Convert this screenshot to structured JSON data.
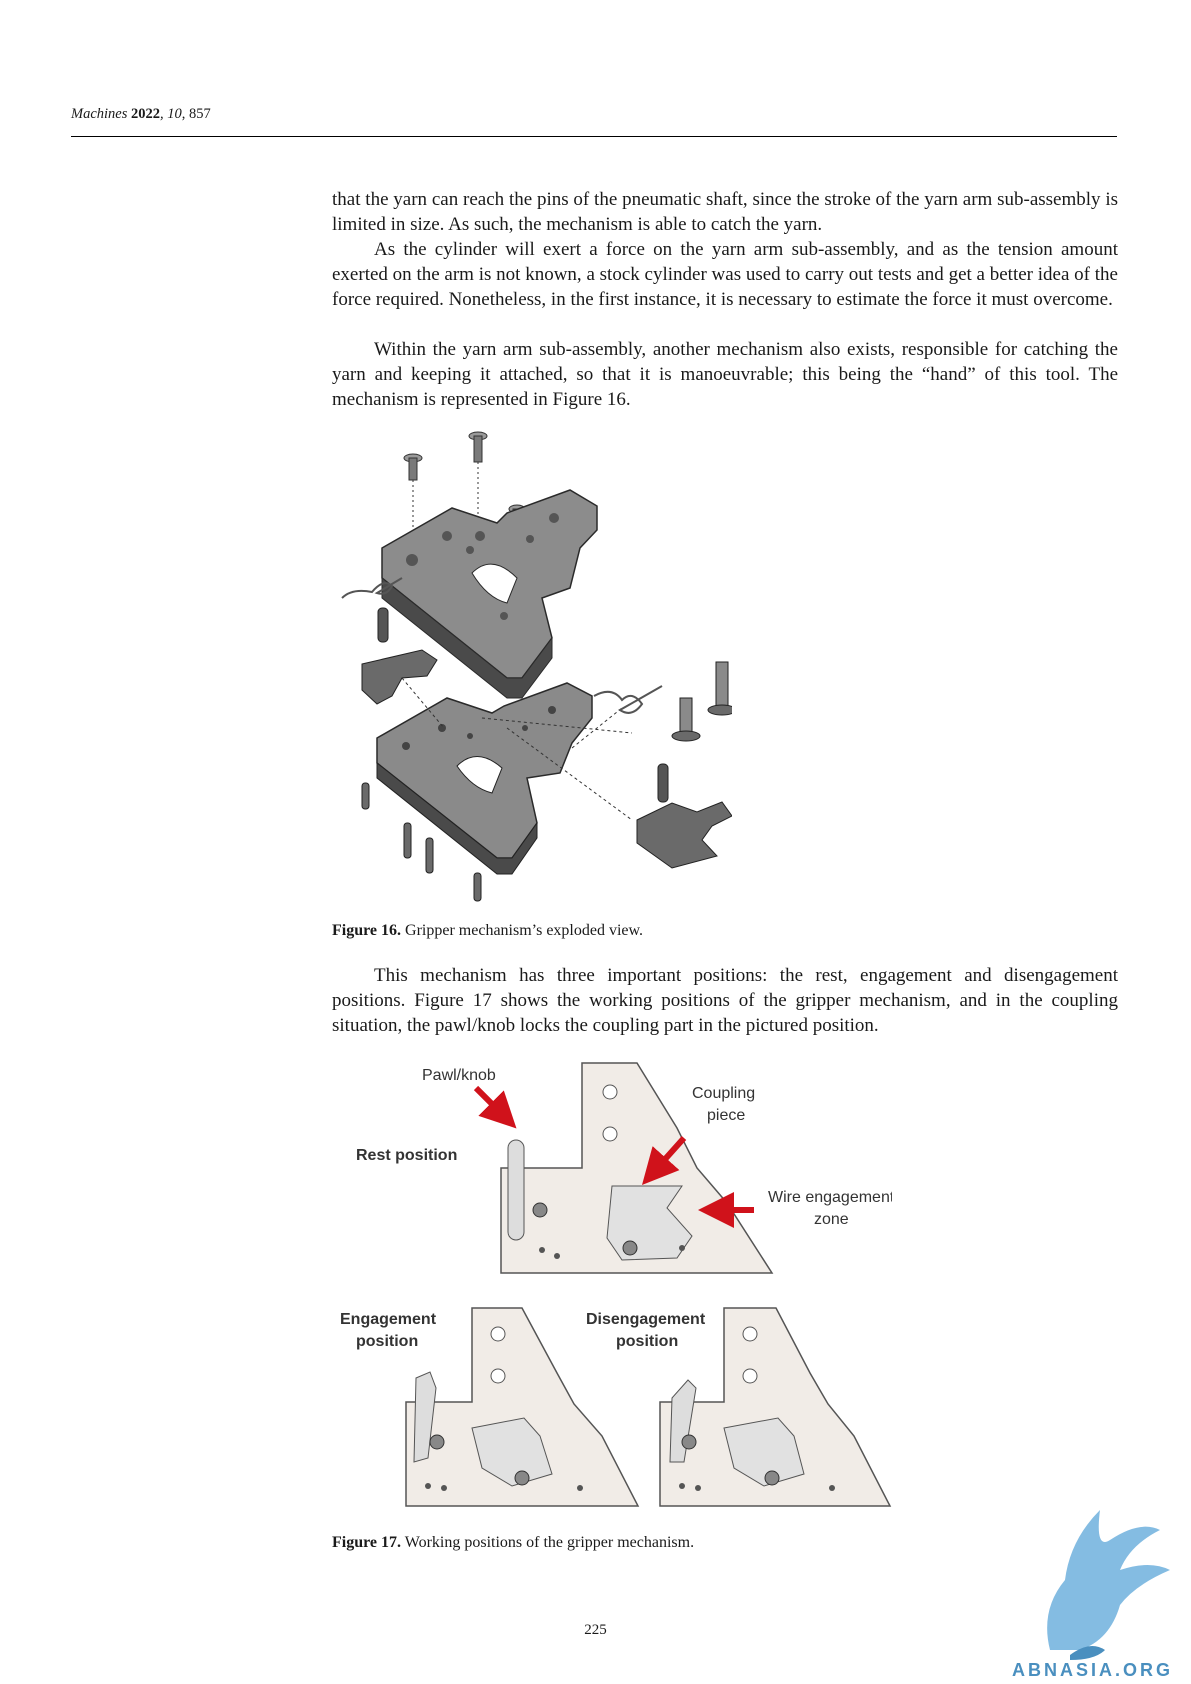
{
  "header": {
    "journal": "Machines",
    "year": "2022",
    "volume": "10",
    "article": "857"
  },
  "paragraphs": [
    "that the yarn can reach the pins of the pneumatic shaft, since the stroke of the yarn arm sub-assembly is limited in size. As such, the mechanism is able to catch the yarn.",
    "As the cylinder will exert a force on the yarn arm sub-assembly, and as the tension amount exerted on the arm is not known, a stock cylinder was used to carry out tests and get a better idea of the force required. Nonetheless, in the first instance, it is necessary to estimate the force it must overcome.",
    "Within the yarn arm sub-assembly, another mechanism also exists, responsible for catching the yarn and keeping it attached, so that it is manoeuvrable; this being the “hand” of this tool. The mechanism is represented in Figure 16.",
    "This mechanism has three important positions: the rest, engagement and disengagement positions. Figure 17 shows the working positions of the gripper mechanism, and in the coupling situation, the pawl/knob locks the coupling part in the pictured position."
  ],
  "figure16": {
    "label": "Figure 16.",
    "caption": "Gripper mechanism’s exploded view."
  },
  "figure17": {
    "label": "Figure 17.",
    "caption": "Working positions of the gripper mechanism.",
    "labels": {
      "pawl": "Pawl/knob",
      "coupling_1": "Coupling",
      "coupling_2": "piece",
      "rest": "Rest position",
      "wire_1": "Wire engagement",
      "wire_2": "zone",
      "engagement_1": "Engagement",
      "engagement_2": "position",
      "disengagement_1": "Disengagement",
      "disengagement_2": "position"
    }
  },
  "page_number": "225",
  "watermark": "ABNASIA.ORG",
  "colors": {
    "arrow_red": "#d0121b",
    "part_fill": "#f1ece7",
    "metal_dark": "#5d5d5d",
    "metal_light": "#8a8a8a",
    "watermark_blue": "#4a8fbf"
  }
}
